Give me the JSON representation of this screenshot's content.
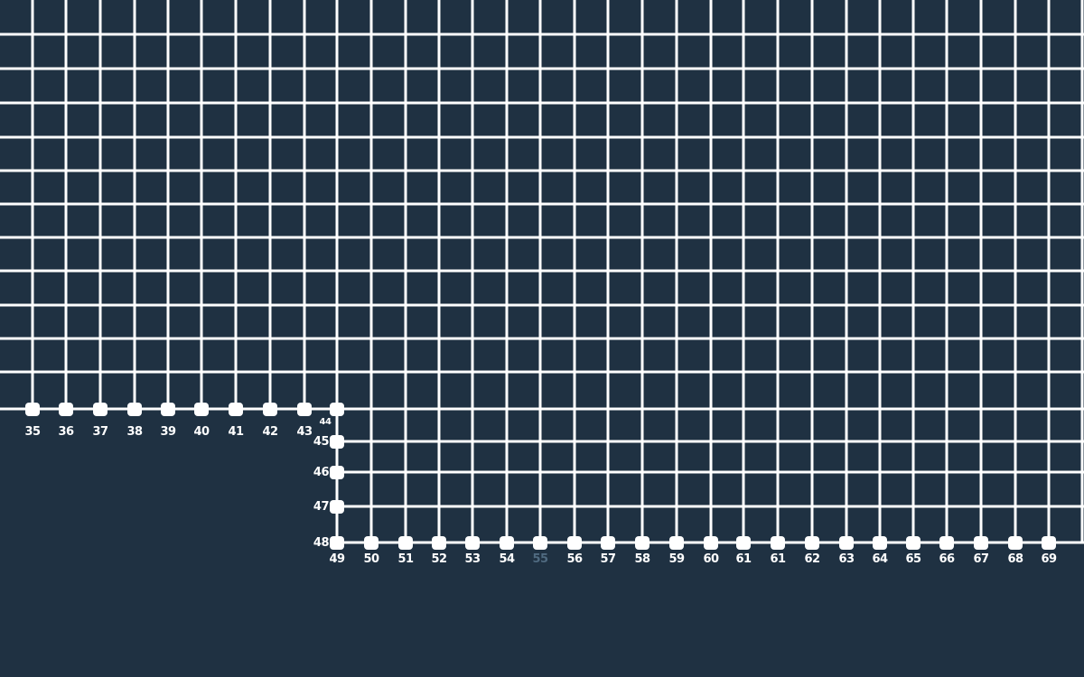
{
  "board": {
    "colors": {
      "background": "#1f3142",
      "line": "#ffffff",
      "node": "#ffffff",
      "label": "#ffffff",
      "muted_label": "#4f6a80"
    },
    "top_row_labels": [
      "35",
      "36",
      "37",
      "38",
      "39",
      "40",
      "41",
      "42",
      "43"
    ],
    "corner_label": "44",
    "left_column_labels": [
      "45",
      "46",
      "47",
      "48"
    ],
    "bottom_row_labels": [
      "49",
      "50",
      "51",
      "52",
      "53",
      "54",
      "55",
      "56",
      "57",
      "58",
      "59",
      "60",
      "61",
      "61",
      "62",
      "63",
      "64",
      "65",
      "66",
      "67",
      "68",
      "69"
    ],
    "muted_labels": [
      "55"
    ]
  }
}
